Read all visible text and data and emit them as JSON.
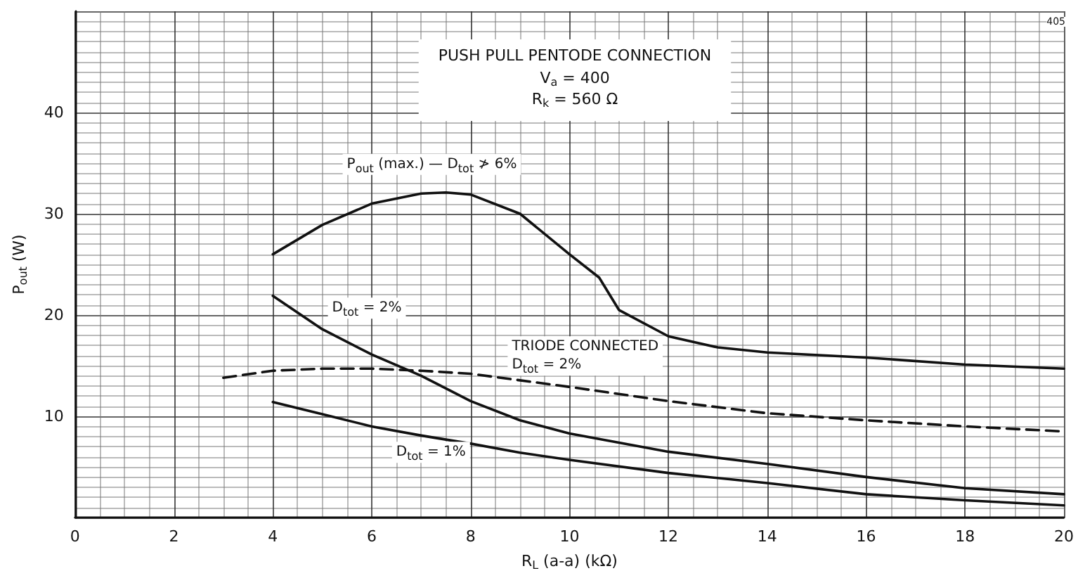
{
  "chart_data": {
    "type": "line",
    "title": "PUSH PULL PENTODE CONNECTION",
    "subtitle": "V$_{a}$ = 400\nR$_{k}$ = 560 Ω",
    "xlabel": "R$_{L}$ (a-a) (kΩ)",
    "ylabel": "P$_{out}$ (W)",
    "xlim": [
      0,
      20
    ],
    "xticks": [
      0,
      2,
      4,
      6,
      8,
      10,
      12,
      14,
      16,
      18,
      20
    ],
    "ylim": [
      0,
      50
    ],
    "yticks": [
      {
        "value": 0,
        "label": null
      },
      10,
      20,
      30,
      40,
      {
        "value": 50,
        "label": null
      }
    ],
    "grid": true,
    "marker": "none",
    "line_style": "solid",
    "series": [
      {
        "name": "P$_{out}$ (max.) — D$_{tot}$ ≯ 6%",
        "color": "#111111",
        "x": [
          4,
          5,
          6,
          7,
          7.5,
          8,
          9,
          10,
          10.6,
          11,
          12,
          13,
          14,
          16,
          18,
          20
        ],
        "values": [
          26,
          28.9,
          31,
          32,
          32.1,
          31.9,
          30,
          26,
          23.7,
          20.5,
          17.9,
          16.8,
          16.3,
          15.8,
          15.1,
          14.7
        ]
      },
      {
        "name": "D$_{tot}$ = 2%",
        "color": "#111111",
        "x": [
          4,
          5,
          6,
          7,
          8,
          9,
          10,
          12,
          14,
          16,
          18,
          20
        ],
        "values": [
          21.9,
          18.6,
          16.1,
          14,
          11.5,
          9.6,
          8.3,
          6.5,
          5.3,
          4,
          2.9,
          2.3
        ]
      },
      {
        "name": "D$_{tot}$ = 1%",
        "color": "#111111",
        "x": [
          4,
          5,
          6,
          7,
          8,
          9,
          10,
          12,
          14,
          16,
          18,
          20
        ],
        "values": [
          11.4,
          10.2,
          9,
          8.1,
          7.3,
          6.4,
          5.7,
          4.4,
          3.4,
          2.3,
          1.7,
          1.2
        ]
      },
      {
        "name": "TRIODE CONNECTED\nD$_{tot}$ = 2%",
        "color": "#111111",
        "line_style": "dashed",
        "x": [
          3,
          4,
          5,
          6,
          7,
          8,
          10,
          12,
          14,
          16,
          18,
          20
        ],
        "values": [
          13.8,
          14.5,
          14.7,
          14.7,
          14.5,
          14.2,
          12.9,
          11.5,
          10.3,
          9.6,
          9,
          8.5
        ]
      }
    ],
    "annotations": [
      "405"
    ]
  }
}
